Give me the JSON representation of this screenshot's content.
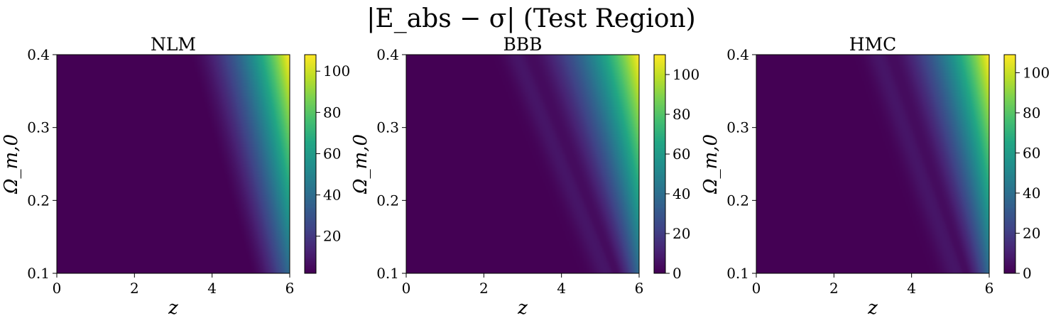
{
  "figure": {
    "suptitle": "|E_abs − σ| (Test Region)"
  },
  "chart_data": [
    {
      "type": "heatmap",
      "title": "NLM",
      "xlabel": "z",
      "ylabel": "Ω_m,0",
      "xlim": [
        0,
        6
      ],
      "ylim": [
        0.1,
        0.4
      ],
      "x_ticks": [
        0,
        2,
        4,
        6
      ],
      "y_ticks": [
        0.1,
        0.2,
        0.3,
        0.4
      ],
      "colormap": "viridis",
      "colorbar_range": [
        2,
        108
      ],
      "colorbar_ticks": [
        20,
        40,
        60,
        80,
        100
      ],
      "model": {
        "onset_z_at_omega_0_4": 3.4,
        "onset_z_at_omega_0_1": 5.0,
        "max_value": 108,
        "min_value": 2,
        "trough_depth": 0.0
      }
    },
    {
      "type": "heatmap",
      "title": "BBB",
      "xlabel": "z",
      "ylabel": "Ω_m,0",
      "xlim": [
        0,
        6
      ],
      "ylim": [
        0.1,
        0.4
      ],
      "x_ticks": [
        0,
        2,
        4,
        6
      ],
      "y_ticks": [
        0.1,
        0.2,
        0.3,
        0.4
      ],
      "colormap": "viridis",
      "colorbar_range": [
        0,
        110
      ],
      "colorbar_ticks": [
        0,
        20,
        40,
        60,
        80,
        100
      ],
      "model": {
        "onset_z_at_omega_0_4": 3.0,
        "onset_z_at_omega_0_1": 5.3,
        "max_value": 110,
        "min_value": 0,
        "trough_depth": 1.0
      }
    },
    {
      "type": "heatmap",
      "title": "HMC",
      "xlabel": "z",
      "ylabel": "Ω_m,0",
      "xlim": [
        0,
        6
      ],
      "ylim": [
        0.1,
        0.4
      ],
      "x_ticks": [
        0,
        2,
        4,
        6
      ],
      "y_ticks": [
        0.1,
        0.2,
        0.3,
        0.4
      ],
      "colormap": "viridis",
      "colorbar_range": [
        0,
        109
      ],
      "colorbar_ticks": [
        0,
        20,
        40,
        60,
        80,
        100
      ],
      "model": {
        "onset_z_at_omega_0_4": 3.3,
        "onset_z_at_omega_0_1": 5.3,
        "max_value": 109,
        "min_value": 0,
        "trough_depth": 1.0
      }
    }
  ]
}
